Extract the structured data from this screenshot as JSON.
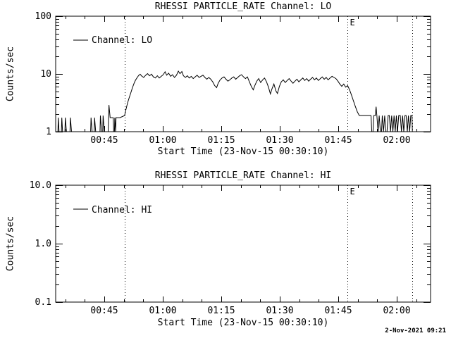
{
  "page": {
    "background": "#ffffff",
    "foreground": "#000000"
  },
  "footer": {
    "timestamp": "2-Nov-2021 09:21"
  },
  "chart_data": [
    {
      "type": "line",
      "title": "RHESSI PARTICLE_RATE Channel: LO",
      "xlabel": "Start Time (23-Nov-15 00:30:10)",
      "ylabel": "Counts/sec",
      "legend": {
        "position": "top-left",
        "entries": [
          {
            "label": "Channel: LO"
          }
        ]
      },
      "grid": false,
      "x_axis": {
        "unit": "minutes-after-midnight",
        "range": [
          32.53,
          128.67
        ],
        "major_ticks": [
          {
            "value": 45,
            "label": "00:45"
          },
          {
            "value": 60,
            "label": "01:00"
          },
          {
            "value": 75,
            "label": "01:15"
          },
          {
            "value": 90,
            "label": "01:30"
          },
          {
            "value": 105,
            "label": "01:45"
          },
          {
            "value": 120,
            "label": "02:00"
          }
        ],
        "minor_tick_interval": 5
      },
      "y_axis": {
        "scale": "log",
        "range": [
          1,
          100
        ],
        "major_ticks": [
          {
            "value": 1,
            "label": "1"
          },
          {
            "value": 10,
            "label": "10"
          },
          {
            "value": 100,
            "label": "100"
          }
        ]
      },
      "event_lines": [
        {
          "value": 50.2,
          "label": ""
        },
        {
          "value": 107.4,
          "label": "E"
        },
        {
          "value": 124.0,
          "label": ""
        }
      ],
      "series": [
        {
          "name": "Channel: LO",
          "points": [
            [
              32.6,
              1
            ],
            [
              33.1,
              1
            ],
            [
              33.2,
              1.75
            ],
            [
              33.4,
              1
            ],
            [
              34.0,
              1
            ],
            [
              34.1,
              1.75
            ],
            [
              34.3,
              1
            ],
            [
              34.9,
              1
            ],
            [
              35.0,
              1.75
            ],
            [
              35.3,
              1
            ],
            [
              36.2,
              1
            ],
            [
              36.3,
              1.75
            ],
            [
              36.6,
              1
            ],
            [
              41.5,
              1
            ],
            [
              41.6,
              1.75
            ],
            [
              41.9,
              1
            ],
            [
              42.4,
              1
            ],
            [
              42.5,
              1.75
            ],
            [
              42.8,
              1
            ],
            [
              43.9,
              1
            ],
            [
              44.0,
              1.9
            ],
            [
              44.3,
              1
            ],
            [
              44.6,
              1
            ],
            [
              44.7,
              1.9
            ],
            [
              45.0,
              1
            ],
            [
              46.0,
              1
            ],
            [
              46.2,
              2.9
            ],
            [
              46.5,
              1.75
            ],
            [
              47.3,
              1.75
            ],
            [
              47.4,
              1
            ],
            [
              47.6,
              1
            ],
            [
              47.7,
              1.75
            ],
            [
              47.9,
              1
            ],
            [
              48.0,
              1.75
            ],
            [
              48.2,
              1.75
            ],
            [
              49.0,
              1.75
            ],
            [
              50.2,
              1.9
            ],
            [
              50.6,
              2.5
            ],
            [
              51.0,
              3.2
            ],
            [
              51.4,
              3.9
            ],
            [
              51.8,
              4.7
            ],
            [
              52.2,
              5.7
            ],
            [
              52.6,
              6.8
            ],
            [
              53.0,
              7.8
            ],
            [
              53.4,
              8.6
            ],
            [
              53.8,
              9.4
            ],
            [
              54.2,
              9.9
            ],
            [
              54.6,
              9.2
            ],
            [
              55.1,
              8.7
            ],
            [
              55.6,
              9.5
            ],
            [
              56.1,
              10.1
            ],
            [
              56.6,
              9.3
            ],
            [
              57.1,
              9.9
            ],
            [
              57.6,
              8.9
            ],
            [
              58.1,
              8.5
            ],
            [
              58.6,
              9.3
            ],
            [
              59.1,
              8.5
            ],
            [
              59.6,
              9.1
            ],
            [
              60.1,
              9.7
            ],
            [
              60.6,
              10.9
            ],
            [
              61.0,
              9.5
            ],
            [
              61.5,
              10.3
            ],
            [
              62.0,
              9.1
            ],
            [
              62.5,
              9.7
            ],
            [
              63.0,
              8.7
            ],
            [
              63.5,
              9.5
            ],
            [
              64.0,
              11.2
            ],
            [
              64.4,
              10.1
            ],
            [
              64.9,
              11.0
            ],
            [
              65.3,
              9.3
            ],
            [
              65.8,
              8.7
            ],
            [
              66.3,
              9.3
            ],
            [
              66.8,
              8.5
            ],
            [
              67.3,
              9.1
            ],
            [
              67.8,
              8.3
            ],
            [
              68.3,
              8.9
            ],
            [
              68.8,
              9.5
            ],
            [
              69.3,
              8.7
            ],
            [
              69.8,
              9.1
            ],
            [
              70.3,
              9.5
            ],
            [
              70.8,
              8.7
            ],
            [
              71.3,
              8.1
            ],
            [
              71.8,
              8.7
            ],
            [
              72.3,
              8.1
            ],
            [
              72.8,
              7.3
            ],
            [
              73.3,
              6.3
            ],
            [
              73.8,
              5.8
            ],
            [
              74.2,
              6.9
            ],
            [
              74.7,
              7.9
            ],
            [
              75.2,
              8.5
            ],
            [
              75.7,
              8.9
            ],
            [
              76.2,
              8.1
            ],
            [
              76.7,
              7.5
            ],
            [
              77.2,
              7.9
            ],
            [
              77.7,
              8.5
            ],
            [
              78.2,
              8.9
            ],
            [
              78.7,
              8.1
            ],
            [
              79.2,
              8.7
            ],
            [
              79.7,
              9.3
            ],
            [
              80.2,
              9.7
            ],
            [
              80.7,
              8.9
            ],
            [
              81.2,
              8.3
            ],
            [
              81.7,
              8.9
            ],
            [
              82.2,
              7.3
            ],
            [
              82.7,
              6.1
            ],
            [
              83.2,
              5.3
            ],
            [
              83.6,
              6.3
            ],
            [
              84.1,
              7.5
            ],
            [
              84.6,
              8.3
            ],
            [
              85.1,
              7.1
            ],
            [
              85.6,
              7.9
            ],
            [
              86.1,
              8.5
            ],
            [
              86.6,
              7.3
            ],
            [
              87.1,
              5.9
            ],
            [
              87.6,
              4.5
            ],
            [
              88.0,
              5.5
            ],
            [
              88.5,
              6.7
            ],
            [
              89.0,
              5.1
            ],
            [
              89.4,
              4.6
            ],
            [
              89.9,
              6.1
            ],
            [
              90.4,
              7.3
            ],
            [
              90.9,
              7.9
            ],
            [
              91.4,
              7.1
            ],
            [
              91.9,
              7.7
            ],
            [
              92.4,
              8.3
            ],
            [
              92.9,
              7.5
            ],
            [
              93.4,
              6.9
            ],
            [
              93.9,
              7.5
            ],
            [
              94.4,
              8.1
            ],
            [
              94.9,
              7.3
            ],
            [
              95.4,
              7.9
            ],
            [
              95.9,
              8.5
            ],
            [
              96.4,
              7.7
            ],
            [
              96.9,
              8.3
            ],
            [
              97.4,
              7.5
            ],
            [
              97.9,
              8.1
            ],
            [
              98.4,
              8.7
            ],
            [
              98.9,
              7.9
            ],
            [
              99.4,
              8.5
            ],
            [
              99.9,
              7.7
            ],
            [
              100.4,
              8.3
            ],
            [
              100.9,
              8.9
            ],
            [
              101.4,
              8.1
            ],
            [
              101.9,
              8.7
            ],
            [
              102.4,
              7.9
            ],
            [
              102.9,
              8.5
            ],
            [
              103.4,
              9.1
            ],
            [
              103.9,
              8.7
            ],
            [
              104.4,
              8.3
            ],
            [
              104.9,
              7.5
            ],
            [
              105.4,
              6.7
            ],
            [
              105.9,
              6.1
            ],
            [
              106.4,
              6.7
            ],
            [
              106.9,
              5.9
            ],
            [
              107.4,
              6.3
            ],
            [
              107.9,
              5.3
            ],
            [
              108.4,
              4.3
            ],
            [
              108.9,
              3.4
            ],
            [
              109.4,
              2.7
            ],
            [
              109.9,
              2.2
            ],
            [
              110.4,
              1.9
            ],
            [
              113.4,
              1.9
            ],
            [
              113.6,
              1
            ],
            [
              113.9,
              1
            ],
            [
              114.1,
              1.9
            ],
            [
              114.5,
              1.9
            ],
            [
              114.7,
              2.7
            ],
            [
              114.9,
              1.9
            ],
            [
              115.2,
              1
            ],
            [
              115.5,
              1.9
            ],
            [
              115.8,
              1
            ],
            [
              116.1,
              1
            ],
            [
              116.3,
              1.9
            ],
            [
              116.6,
              1
            ],
            [
              116.9,
              1.9
            ],
            [
              117.2,
              1
            ],
            [
              117.5,
              1
            ],
            [
              117.8,
              1.9
            ],
            [
              118.1,
              1.9
            ],
            [
              118.4,
              1
            ],
            [
              118.7,
              1.9
            ],
            [
              119.0,
              1
            ],
            [
              119.3,
              1.9
            ],
            [
              119.6,
              1
            ],
            [
              119.9,
              1.9
            ],
            [
              120.2,
              1
            ],
            [
              120.5,
              1.9
            ],
            [
              120.9,
              1.9
            ],
            [
              121.2,
              1
            ],
            [
              121.5,
              1.9
            ],
            [
              121.8,
              1
            ],
            [
              122.1,
              1.9
            ],
            [
              122.4,
              1.9
            ],
            [
              122.7,
              1
            ],
            [
              123.0,
              1.9
            ],
            [
              123.3,
              1
            ],
            [
              123.6,
              1.9
            ],
            [
              123.9,
              1.9
            ],
            [
              124.0,
              1
            ]
          ]
        }
      ]
    },
    {
      "type": "line",
      "title": "RHESSI PARTICLE_RATE Channel: HI",
      "xlabel": "Start Time (23-Nov-15 00:30:10)",
      "ylabel": "Counts/sec",
      "legend": {
        "position": "top-left",
        "entries": [
          {
            "label": "Channel: HI"
          }
        ]
      },
      "grid": false,
      "x_axis": {
        "unit": "minutes-after-midnight",
        "range": [
          32.53,
          128.67
        ],
        "major_ticks": [
          {
            "value": 45,
            "label": "00:45"
          },
          {
            "value": 60,
            "label": "01:00"
          },
          {
            "value": 75,
            "label": "01:15"
          },
          {
            "value": 90,
            "label": "01:30"
          },
          {
            "value": 105,
            "label": "01:45"
          },
          {
            "value": 120,
            "label": "02:00"
          }
        ],
        "minor_tick_interval": 5
      },
      "y_axis": {
        "scale": "log",
        "range": [
          0.1,
          10
        ],
        "major_ticks": [
          {
            "value": 0.1,
            "label": "0.1"
          },
          {
            "value": 1,
            "label": "1.0"
          },
          {
            "value": 10,
            "label": "10.0"
          }
        ]
      },
      "event_lines": [
        {
          "value": 50.2,
          "label": ""
        },
        {
          "value": 107.4,
          "label": "E"
        },
        {
          "value": 124.0,
          "label": ""
        }
      ],
      "series": [
        {
          "name": "Channel: HI",
          "points": []
        }
      ]
    }
  ]
}
